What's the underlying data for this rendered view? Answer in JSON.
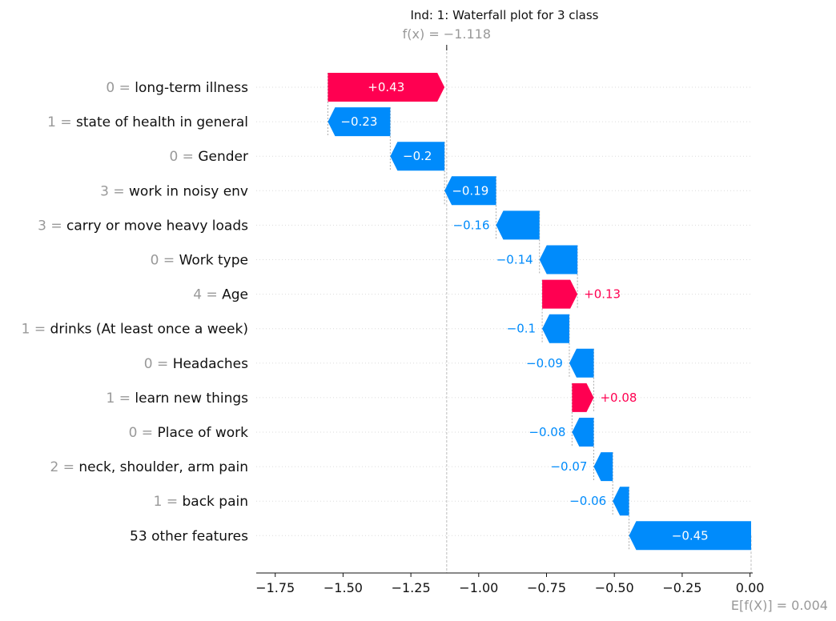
{
  "chart_data": {
    "type": "waterfall",
    "title": "Ind: 1: Waterfall plot for 3 class",
    "fx_label": "f(x) = −1.118",
    "fx_value": -1.118,
    "base_label": "E[f(X)] = 0.004",
    "base_value": 0.004,
    "xlim": [
      -1.82,
      0.01
    ],
    "xticks": [
      -1.75,
      -1.5,
      -1.25,
      -1.0,
      -0.75,
      -0.5,
      -0.25,
      0.0
    ],
    "xtick_labels": [
      "−1.75",
      "−1.50",
      "−1.25",
      "−1.00",
      "−0.75",
      "−0.50",
      "−0.25",
      "0.00"
    ],
    "features": [
      {
        "value": "0",
        "name": "long-term illness",
        "shap": 0.43,
        "label": "+0.43"
      },
      {
        "value": "1",
        "name": "state of health in general",
        "shap": -0.23,
        "label": "−0.23"
      },
      {
        "value": "0",
        "name": "Gender",
        "shap": -0.2,
        "label": "−0.2"
      },
      {
        "value": "3",
        "name": "work in noisy env",
        "shap": -0.19,
        "label": "−0.19"
      },
      {
        "value": "3",
        "name": "carry or move heavy loads",
        "shap": -0.16,
        "label": "−0.16"
      },
      {
        "value": "0",
        "name": "Work type",
        "shap": -0.14,
        "label": "−0.14"
      },
      {
        "value": "4",
        "name": "Age",
        "shap": 0.13,
        "label": "+0.13"
      },
      {
        "value": "1",
        "name": "drinks (At least once a week)",
        "shap": -0.1,
        "label": "−0.1"
      },
      {
        "value": "0",
        "name": "Headaches",
        "shap": -0.09,
        "label": "−0.09"
      },
      {
        "value": "1",
        "name": "learn new things",
        "shap": 0.08,
        "label": "+0.08"
      },
      {
        "value": "0",
        "name": "Place of work",
        "shap": -0.08,
        "label": "−0.08"
      },
      {
        "value": "2",
        "name": "neck, shoulder, arm pain",
        "shap": -0.07,
        "label": "−0.07"
      },
      {
        "value": "1",
        "name": "back pain",
        "shap": -0.06,
        "label": "−0.06"
      },
      {
        "value": "",
        "name": "53 other features",
        "shap": -0.45,
        "label": "−0.45"
      }
    ],
    "colors": {
      "positive": "#ff0051",
      "negative": "#008bfb",
      "muted": "#999999",
      "text": "#111111"
    }
  }
}
